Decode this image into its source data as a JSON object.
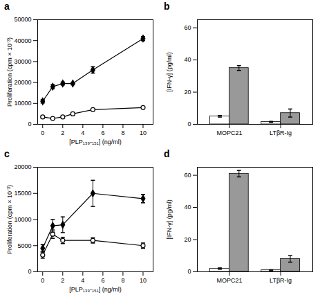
{
  "chart_data": [
    {
      "type": "line",
      "title": "a",
      "x": [
        0,
        1,
        2,
        3,
        5,
        10
      ],
      "xlabel": "[PLP₁₃₉-₁₅₁] (ng/ml)",
      "ylabel": "Proliferation (cpm × 10⁻³)",
      "xlim": [
        -0.5,
        11
      ],
      "xticks": [
        0,
        2,
        4,
        6,
        8,
        10
      ],
      "ylim": [
        0,
        50000
      ],
      "yticks": [
        0,
        10000,
        20000,
        30000,
        40000,
        50000
      ],
      "series": [
        {
          "color": "#000000",
          "marker": "diamond",
          "values": [
            11000,
            18000,
            19500,
            19500,
            26000,
            41000
          ],
          "yerr": [
            800,
            1000,
            700,
            600,
            1500,
            1000
          ]
        },
        {
          "color": "#000000",
          "marker": "circle",
          "values": [
            3500,
            2800,
            3500,
            5000,
            7000,
            8000
          ],
          "yerr": [
            500,
            300,
            400,
            600,
            500,
            400
          ]
        }
      ]
    },
    {
      "type": "bar",
      "title": "b",
      "categories": [
        "MOPC21",
        "LTβR-Ig"
      ],
      "ylabel": "[IFN-γ] (pg/ml)",
      "ylim": [
        0,
        65
      ],
      "yticks": [
        0,
        20,
        40,
        60
      ],
      "series": [
        {
          "color": "#ffffff",
          "values": [
            5,
            1.5
          ],
          "yerr": [
            0.5,
            0.3
          ]
        },
        {
          "color": "#999999",
          "values": [
            35,
            7
          ],
          "yerr": [
            1.5,
            2.5
          ]
        }
      ]
    },
    {
      "type": "line",
      "title": "c",
      "x": [
        0,
        1,
        2,
        5,
        10
      ],
      "xlabel": "[PLP₁₃₉-₁₅₁] (ng/ml)",
      "ylabel": "Proliferation (cpm × 10⁻³)",
      "xlim": [
        -0.5,
        11
      ],
      "xticks": [
        0,
        2,
        4,
        6,
        8,
        10
      ],
      "ylim": [
        0,
        20000
      ],
      "yticks": [
        0,
        5000,
        10000,
        15000,
        20000
      ],
      "series": [
        {
          "color": "#000000",
          "marker": "diamond",
          "values": [
            4500,
            8800,
            9000,
            15000,
            14000
          ],
          "yerr": [
            700,
            1200,
            1500,
            2500,
            800
          ]
        },
        {
          "color": "#000000",
          "marker": "circle",
          "values": [
            3200,
            7200,
            6000,
            6000,
            5000
          ],
          "yerr": [
            600,
            800,
            600,
            500,
            500
          ]
        }
      ]
    },
    {
      "type": "bar",
      "title": "d",
      "categories": [
        "MOPC21",
        "LTβR-Ig"
      ],
      "ylabel": "[IFN-γ] (pg/ml)",
      "ylim": [
        0,
        65
      ],
      "yticks": [
        0,
        20,
        40,
        60
      ],
      "series": [
        {
          "color": "#ffffff",
          "values": [
            2,
            1
          ],
          "yerr": [
            0.4,
            0.3
          ]
        },
        {
          "color": "#999999",
          "values": [
            61,
            8
          ],
          "yerr": [
            2,
            2
          ]
        }
      ]
    }
  ]
}
